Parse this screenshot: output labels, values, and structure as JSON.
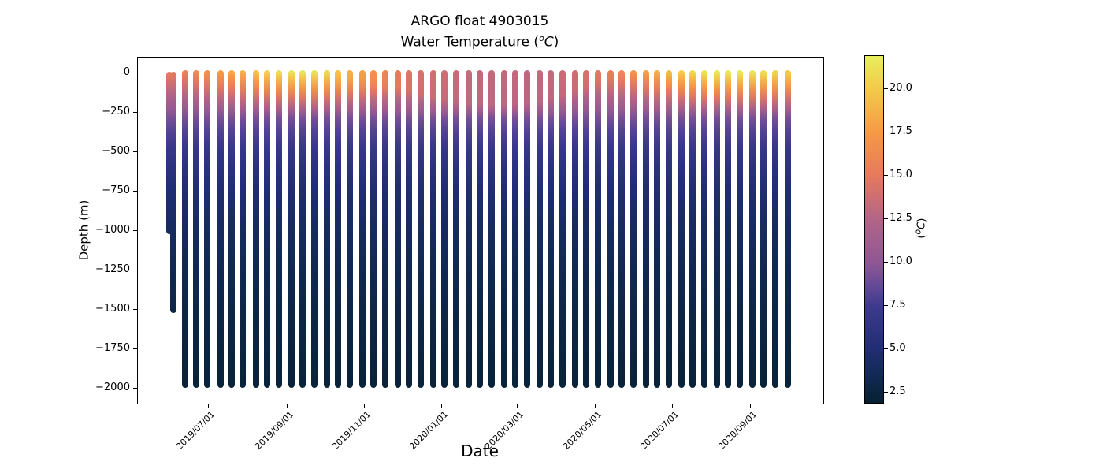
{
  "title": {
    "line1": "ARGO float 4903015",
    "line2_prefix": "Water Temperature (",
    "line2_sup": "o",
    "line2_math": "C",
    "line2_suffix": ")"
  },
  "chart_data": {
    "type": "scatter",
    "title": "ARGO float 4903015",
    "subtitle": "Water Temperature (°C)",
    "xlabel": "Date",
    "ylabel": "Depth (m)",
    "grid": false,
    "x_tick_dates": [
      "2019/07/01",
      "2019/09/01",
      "2019/11/01",
      "2020/01/01",
      "2020/03/01",
      "2020/05/01",
      "2020/07/01",
      "2020/09/01"
    ],
    "xlim_dates": [
      "2019/05/06",
      "2020/10/28"
    ],
    "y_tick_values": [
      0,
      -250,
      -500,
      -750,
      -1000,
      -1250,
      -1500,
      -1750,
      -2000
    ],
    "y_tick_labels": [
      "0",
      "−250",
      "−500",
      "−750",
      "−1000",
      "−1250",
      "−1500",
      "−1750",
      "−2000"
    ],
    "ylim_m": [
      -2095,
      100
    ],
    "colorbar": {
      "label_parts": {
        "prefix": "(",
        "sup": "o",
        "main": "C",
        "suffix": ")"
      },
      "ticks": [
        2.5,
        5.0,
        7.5,
        10.0,
        12.5,
        15.0,
        17.5,
        20.0
      ],
      "tick_labels": [
        "2.5",
        "5.0",
        "7.5",
        "10.0",
        "12.5",
        "15.0",
        "17.5",
        "20.0"
      ],
      "vmin": 1.9,
      "vmax": 21.9,
      "colormap_name": "thermal",
      "colormap_stops": [
        [
          0.0,
          "#062030"
        ],
        [
          0.08,
          "#122a55"
        ],
        [
          0.155,
          "#212d74"
        ],
        [
          0.28,
          "#3e3a8e"
        ],
        [
          0.34,
          "#664a98"
        ],
        [
          0.405,
          "#8f5794"
        ],
        [
          0.53,
          "#b36487"
        ],
        [
          0.655,
          "#e57a5d"
        ],
        [
          0.78,
          "#f59a47"
        ],
        [
          0.905,
          "#f3c94b"
        ],
        [
          1.0,
          "#e7ef5d"
        ]
      ]
    },
    "deep_temp_profile_m_c": [
      [
        300,
        9.2
      ],
      [
        420,
        7.6
      ],
      [
        560,
        6.2
      ],
      [
        720,
        5.0
      ],
      [
        900,
        4.2
      ],
      [
        1100,
        3.6
      ],
      [
        1350,
        3.1
      ],
      [
        1600,
        2.7
      ],
      [
        1975,
        2.3
      ]
    ],
    "profile_fields": [
      "date",
      "surface_temp_c",
      "mixed_layer_depth_m",
      "top_depth_m",
      "bottom_depth_m"
    ],
    "profiles": [
      [
        "2019/05/31",
        15.2,
        35,
        10,
        1000
      ],
      [
        "2019/06/03",
        15.0,
        35,
        10,
        1500
      ],
      [
        "2019/06/12",
        15.8,
        25,
        0,
        1975
      ],
      [
        "2019/06/21",
        16.4,
        22,
        0,
        1975
      ],
      [
        "2019/06/30",
        17.0,
        20,
        0,
        1975
      ],
      [
        "2019/07/10",
        17.8,
        18,
        0,
        1975
      ],
      [
        "2019/07/19",
        18.4,
        16,
        0,
        1975
      ],
      [
        "2019/07/28",
        19.0,
        15,
        0,
        1975
      ],
      [
        "2019/08/07",
        19.8,
        15,
        0,
        1975
      ],
      [
        "2019/08/16",
        20.6,
        15,
        0,
        1975
      ],
      [
        "2019/08/25",
        21.2,
        16,
        0,
        1975
      ],
      [
        "2019/09/04",
        21.5,
        16,
        0,
        1975
      ],
      [
        "2019/09/13",
        21.6,
        18,
        0,
        1975
      ],
      [
        "2019/09/22",
        21.4,
        20,
        0,
        1975
      ],
      [
        "2019/10/02",
        20.8,
        25,
        0,
        1975
      ],
      [
        "2019/10/11",
        19.8,
        35,
        0,
        1975
      ],
      [
        "2019/10/20",
        18.8,
        45,
        0,
        1975
      ],
      [
        "2019/10/30",
        17.8,
        60,
        0,
        1975
      ],
      [
        "2019/11/08",
        16.8,
        75,
        0,
        1975
      ],
      [
        "2019/11/17",
        16.0,
        90,
        0,
        1975
      ],
      [
        "2019/11/27",
        15.2,
        110,
        0,
        1975
      ],
      [
        "2019/12/06",
        14.6,
        130,
        0,
        1975
      ],
      [
        "2019/12/15",
        14.2,
        150,
        0,
        1975
      ],
      [
        "2019/12/25",
        13.9,
        170,
        0,
        1975
      ],
      [
        "2020/01/03",
        13.7,
        185,
        0,
        1975
      ],
      [
        "2020/01/12",
        13.5,
        195,
        0,
        1975
      ],
      [
        "2020/01/22",
        13.4,
        205,
        0,
        1975
      ],
      [
        "2020/01/31",
        13.3,
        210,
        0,
        1975
      ],
      [
        "2020/02/09",
        13.2,
        215,
        0,
        1975
      ],
      [
        "2020/02/19",
        13.2,
        215,
        0,
        1975
      ],
      [
        "2020/02/28",
        13.1,
        210,
        0,
        1975
      ],
      [
        "2020/03/08",
        13.1,
        205,
        0,
        1975
      ],
      [
        "2020/03/18",
        13.2,
        195,
        0,
        1975
      ],
      [
        "2020/03/27",
        13.3,
        180,
        0,
        1975
      ],
      [
        "2020/04/05",
        13.5,
        160,
        0,
        1975
      ],
      [
        "2020/04/15",
        13.8,
        130,
        0,
        1975
      ],
      [
        "2020/04/24",
        14.2,
        100,
        0,
        1975
      ],
      [
        "2020/05/03",
        14.8,
        70,
        0,
        1975
      ],
      [
        "2020/05/13",
        15.5,
        45,
        0,
        1975
      ],
      [
        "2020/05/22",
        16.2,
        30,
        0,
        1975
      ],
      [
        "2020/05/31",
        17.0,
        22,
        0,
        1975
      ],
      [
        "2020/06/10",
        17.9,
        18,
        0,
        1975
      ],
      [
        "2020/06/19",
        18.8,
        16,
        0,
        1975
      ],
      [
        "2020/06/28",
        19.6,
        15,
        0,
        1975
      ],
      [
        "2020/07/08",
        20.4,
        15,
        0,
        1975
      ],
      [
        "2020/07/17",
        21.0,
        15,
        0,
        1975
      ],
      [
        "2020/07/26",
        21.5,
        15,
        0,
        1975
      ],
      [
        "2020/08/05",
        21.8,
        16,
        0,
        1975
      ],
      [
        "2020/08/14",
        21.9,
        16,
        0,
        1975
      ],
      [
        "2020/08/23",
        21.8,
        18,
        0,
        1975
      ],
      [
        "2020/09/02",
        21.5,
        20,
        0,
        1975
      ],
      [
        "2020/09/11",
        21.0,
        24,
        0,
        1975
      ],
      [
        "2020/09/20",
        20.6,
        28,
        0,
        1975
      ],
      [
        "2020/09/30",
        20.0,
        34,
        0,
        1975
      ]
    ]
  }
}
